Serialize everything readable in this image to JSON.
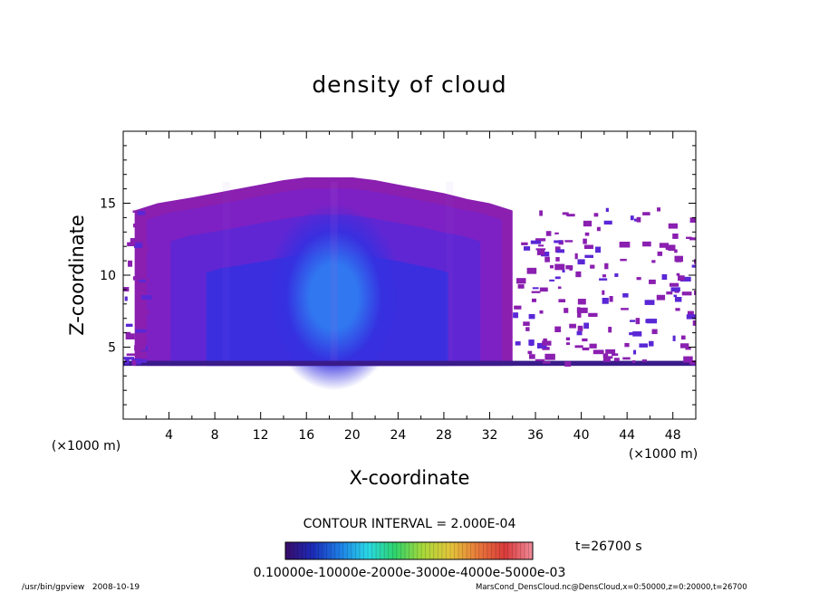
{
  "chart_data": {
    "type": "heatmap",
    "title": "density of cloud",
    "xlabel": "X-coordinate",
    "ylabel": "Z-coordinate",
    "x_unit": "(×1000 m)",
    "y_unit": "(×1000 m)",
    "xlim": [
      0,
      50
    ],
    "ylim": [
      0,
      20
    ],
    "x_ticks": [
      "4",
      "8",
      "12",
      "16",
      "20",
      "24",
      "28",
      "32",
      "36",
      "40",
      "44",
      "48"
    ],
    "y_ticks": [
      "5",
      "10",
      "15"
    ],
    "contour_interval": "CONTOUR INTERVAL = 2.000E-04",
    "time_label": "t=26700 s",
    "colorbar_labels": "0.10000e-10000e-2000e-3000e-4000e-5000e-03",
    "footer_left": "/usr/bin/gpview   2008-10-19",
    "footer_right": "MarsCond_DensCloud.nc@DensCloud,x=0:50000,z=0:20000,t=26700",
    "cloud_layer": {
      "base_z": 3.7,
      "main_x_range": [
        1.0,
        34.0
      ],
      "main_top_z": [
        [
          1.0,
          14.5
        ],
        [
          3.0,
          15.0
        ],
        [
          6.0,
          15.4
        ],
        [
          8.0,
          15.7
        ],
        [
          10.0,
          16.0
        ],
        [
          12.0,
          16.3
        ],
        [
          14.0,
          16.6
        ],
        [
          16.0,
          16.8
        ],
        [
          18.0,
          16.8
        ],
        [
          20.0,
          16.8
        ],
        [
          22.0,
          16.6
        ],
        [
          24.0,
          16.3
        ],
        [
          26.0,
          16.0
        ],
        [
          28.0,
          15.7
        ],
        [
          30.0,
          15.3
        ],
        [
          32.0,
          15.0
        ],
        [
          34.0,
          14.5
        ]
      ],
      "density_core": {
        "x": 18.4,
        "z": 5.5
      },
      "scattered_region_x": [
        34.0,
        50.0
      ]
    },
    "colors": {
      "edge": "#8a1fb0",
      "outer": "#7a22c8",
      "mid": "#5a27d6",
      "inner": "#3530e0",
      "core": "#2f7ff2",
      "base_line": "#3a1b8a"
    },
    "colorbar_colors": [
      "#3a0b6a",
      "#1b2bb8",
      "#1e7fe6",
      "#29d8e6",
      "#2fd36a",
      "#a8d83a",
      "#e3c53a",
      "#e8783a",
      "#d93a3a",
      "#f08a9a"
    ]
  }
}
